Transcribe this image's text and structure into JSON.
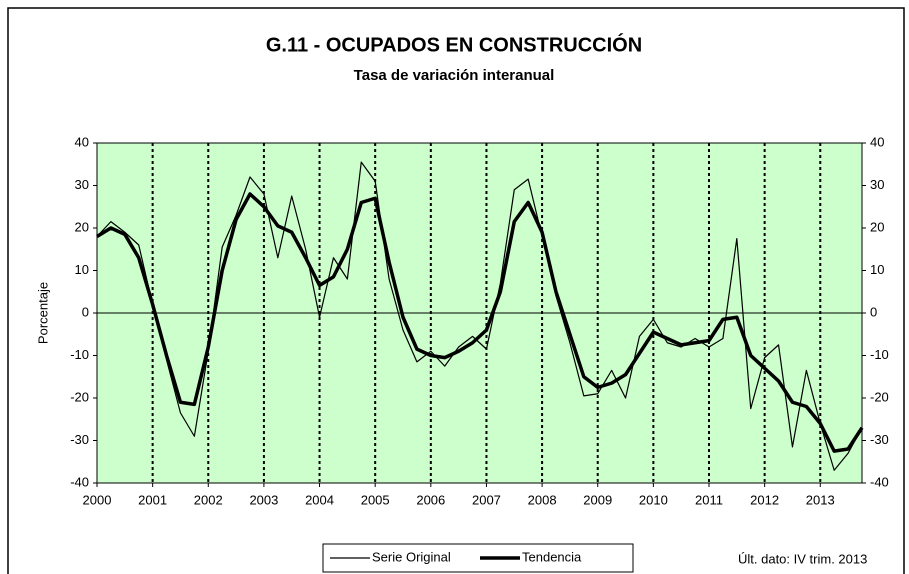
{
  "chart_data": {
    "type": "line",
    "title": "G.11 - OCUPADOS EN CONSTRUCCIÓN",
    "subtitle": "Tasa de variación interanual",
    "y_label": "Porcentaje",
    "annotation": "Últ. dato: IV trim. 2013",
    "x": [
      2000,
      2000.25,
      2000.5,
      2000.75,
      2001,
      2001.25,
      2001.5,
      2001.75,
      2002,
      2002.25,
      2002.5,
      2002.75,
      2003,
      2003.25,
      2003.5,
      2003.75,
      2004,
      2004.25,
      2004.5,
      2004.75,
      2005,
      2005.25,
      2005.5,
      2005.75,
      2006,
      2006.25,
      2006.5,
      2006.75,
      2007,
      2007.25,
      2007.5,
      2007.75,
      2008,
      2008.25,
      2008.5,
      2008.75,
      2009,
      2009.25,
      2009.5,
      2009.75,
      2010,
      2010.25,
      2010.5,
      2010.75,
      2011,
      2011.25,
      2011.5,
      2011.75,
      2012,
      2012.25,
      2012.5,
      2012.75,
      2013,
      2013.25,
      2013.5,
      2013.75
    ],
    "series": [
      {
        "name": "Serie Original",
        "color": "#000000",
        "width": 1.2,
        "values": [
          18,
          21.5,
          19,
          16,
          2,
          -11,
          -23.5,
          -29,
          -9,
          15.5,
          23,
          32,
          28,
          13,
          27.5,
          15,
          -1,
          13,
          8,
          35.5,
          31,
          8,
          -4,
          -11.5,
          -9,
          -12.5,
          -8,
          -5.5,
          -8.5,
          7,
          29,
          31.5,
          18,
          4,
          -7,
          -19.5,
          -19,
          -13.5,
          -20,
          -5.5,
          -1.5,
          -7,
          -8,
          -6,
          -8,
          -6,
          17.5,
          -22.5,
          -10.5,
          -7.5,
          -31.5,
          -13.5,
          -26,
          -37,
          -33,
          -27
        ]
      },
      {
        "name": "Tendencia",
        "color": "#000000",
        "width": 3.5,
        "values": [
          18,
          20,
          18.5,
          13,
          2,
          -10,
          -21,
          -21.5,
          -8,
          10,
          22,
          28,
          25,
          20.5,
          19,
          13,
          6.5,
          8.5,
          15,
          26,
          27,
          12,
          -1,
          -8.5,
          -10,
          -10.5,
          -9,
          -7,
          -4,
          5,
          21.5,
          26,
          19,
          5,
          -5,
          -15,
          -17.5,
          -16.5,
          -14.5,
          -9.5,
          -4.5,
          -6,
          -7.5,
          -7,
          -6.5,
          -1.5,
          -1,
          -10,
          -13,
          -16,
          -21,
          -22,
          -26,
          -32.5,
          -32,
          -27
        ]
      }
    ],
    "xlim": [
      2000,
      2013.75
    ],
    "xticks": [
      2000,
      2001,
      2002,
      2003,
      2004,
      2005,
      2006,
      2007,
      2008,
      2009,
      2010,
      2011,
      2012,
      2013
    ],
    "ylim": [
      -40,
      40
    ],
    "yticks": [
      -40,
      -30,
      -20,
      -10,
      0,
      10,
      20,
      30,
      40
    ],
    "y2lim": [
      -40,
      40
    ],
    "y2ticks": [
      -40,
      -30,
      -20,
      -10,
      0,
      10,
      20,
      30,
      40
    ],
    "plot_background": "#ccffcc",
    "year_gridlines": true,
    "legend": "bottom"
  }
}
